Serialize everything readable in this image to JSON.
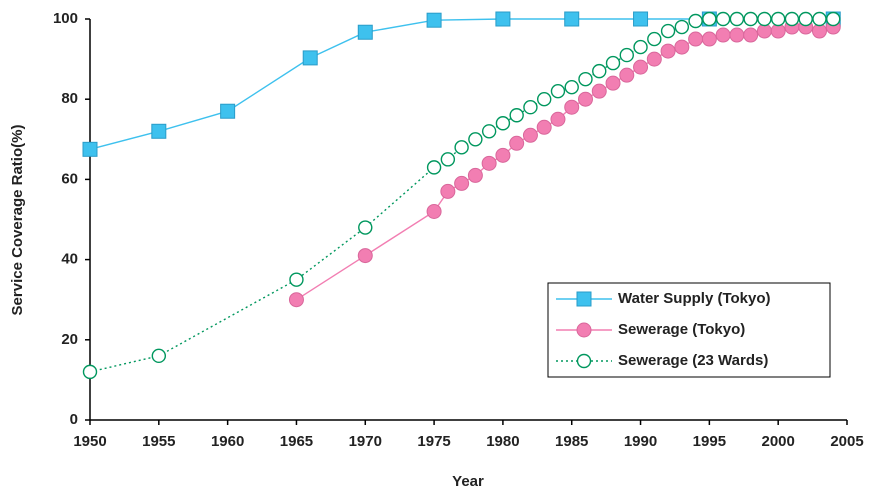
{
  "chart_data": {
    "type": "line",
    "xlabel": "Year",
    "ylabel": "Service Coverage Ratio(%)",
    "xlim": [
      1950,
      2005
    ],
    "xticks": [
      1950,
      1955,
      1960,
      1965,
      1970,
      1975,
      1980,
      1985,
      1990,
      1995,
      2000,
      2005
    ],
    "ylim": [
      0,
      100
    ],
    "yticks": [
      0,
      20,
      40,
      60,
      80,
      100
    ],
    "legend": "lower right",
    "series": [
      {
        "name": "Water Supply (Tokyo)",
        "color": "#3ec1ee",
        "marker": "square",
        "linestyle": "solid",
        "x": [
          1950,
          1955,
          1960,
          1966,
          1970,
          1975,
          1980,
          1985,
          1990,
          1995,
          2004
        ],
        "values": [
          67.5,
          72,
          77,
          90.3,
          96.7,
          99.7,
          100,
          100,
          100,
          100,
          100
        ]
      },
      {
        "name": "Sewerage (Tokyo)",
        "color": "#f27eb2",
        "marker": "circle",
        "linestyle": "solid",
        "x": [
          1965,
          1970,
          1975,
          1976,
          1977,
          1978,
          1979,
          1980,
          1981,
          1982,
          1983,
          1984,
          1985,
          1986,
          1987,
          1988,
          1989,
          1990,
          1991,
          1992,
          1993,
          1994,
          1995,
          1996,
          1997,
          1998,
          1999,
          2000,
          2001,
          2002,
          2003,
          2004
        ],
        "values": [
          30,
          41,
          52,
          57,
          59,
          61,
          64,
          66,
          69,
          71,
          73,
          75,
          78,
          80,
          82,
          84,
          86,
          88,
          90,
          92,
          93,
          95,
          95,
          96,
          96,
          96,
          97,
          97,
          98,
          98,
          97,
          98
        ]
      },
      {
        "name": "Sewerage (23 Wards)",
        "color": "#00975e",
        "marker": "open-circle",
        "linestyle": "dotted",
        "x": [
          1950,
          1955,
          1965,
          1970,
          1975,
          1976,
          1977,
          1978,
          1979,
          1980,
          1981,
          1982,
          1983,
          1984,
          1985,
          1986,
          1987,
          1988,
          1989,
          1990,
          1991,
          1992,
          1993,
          1994,
          1995,
          1996,
          1997,
          1998,
          1999,
          2000,
          2001,
          2002,
          2003,
          2004
        ],
        "values": [
          12,
          16,
          35,
          48,
          63,
          65,
          68,
          70,
          72,
          74,
          76,
          78,
          80,
          82,
          83,
          85,
          87,
          89,
          91,
          93,
          95,
          97,
          98,
          99.5,
          100,
          100,
          100,
          100,
          100,
          100,
          100,
          100,
          100,
          100
        ]
      }
    ]
  }
}
